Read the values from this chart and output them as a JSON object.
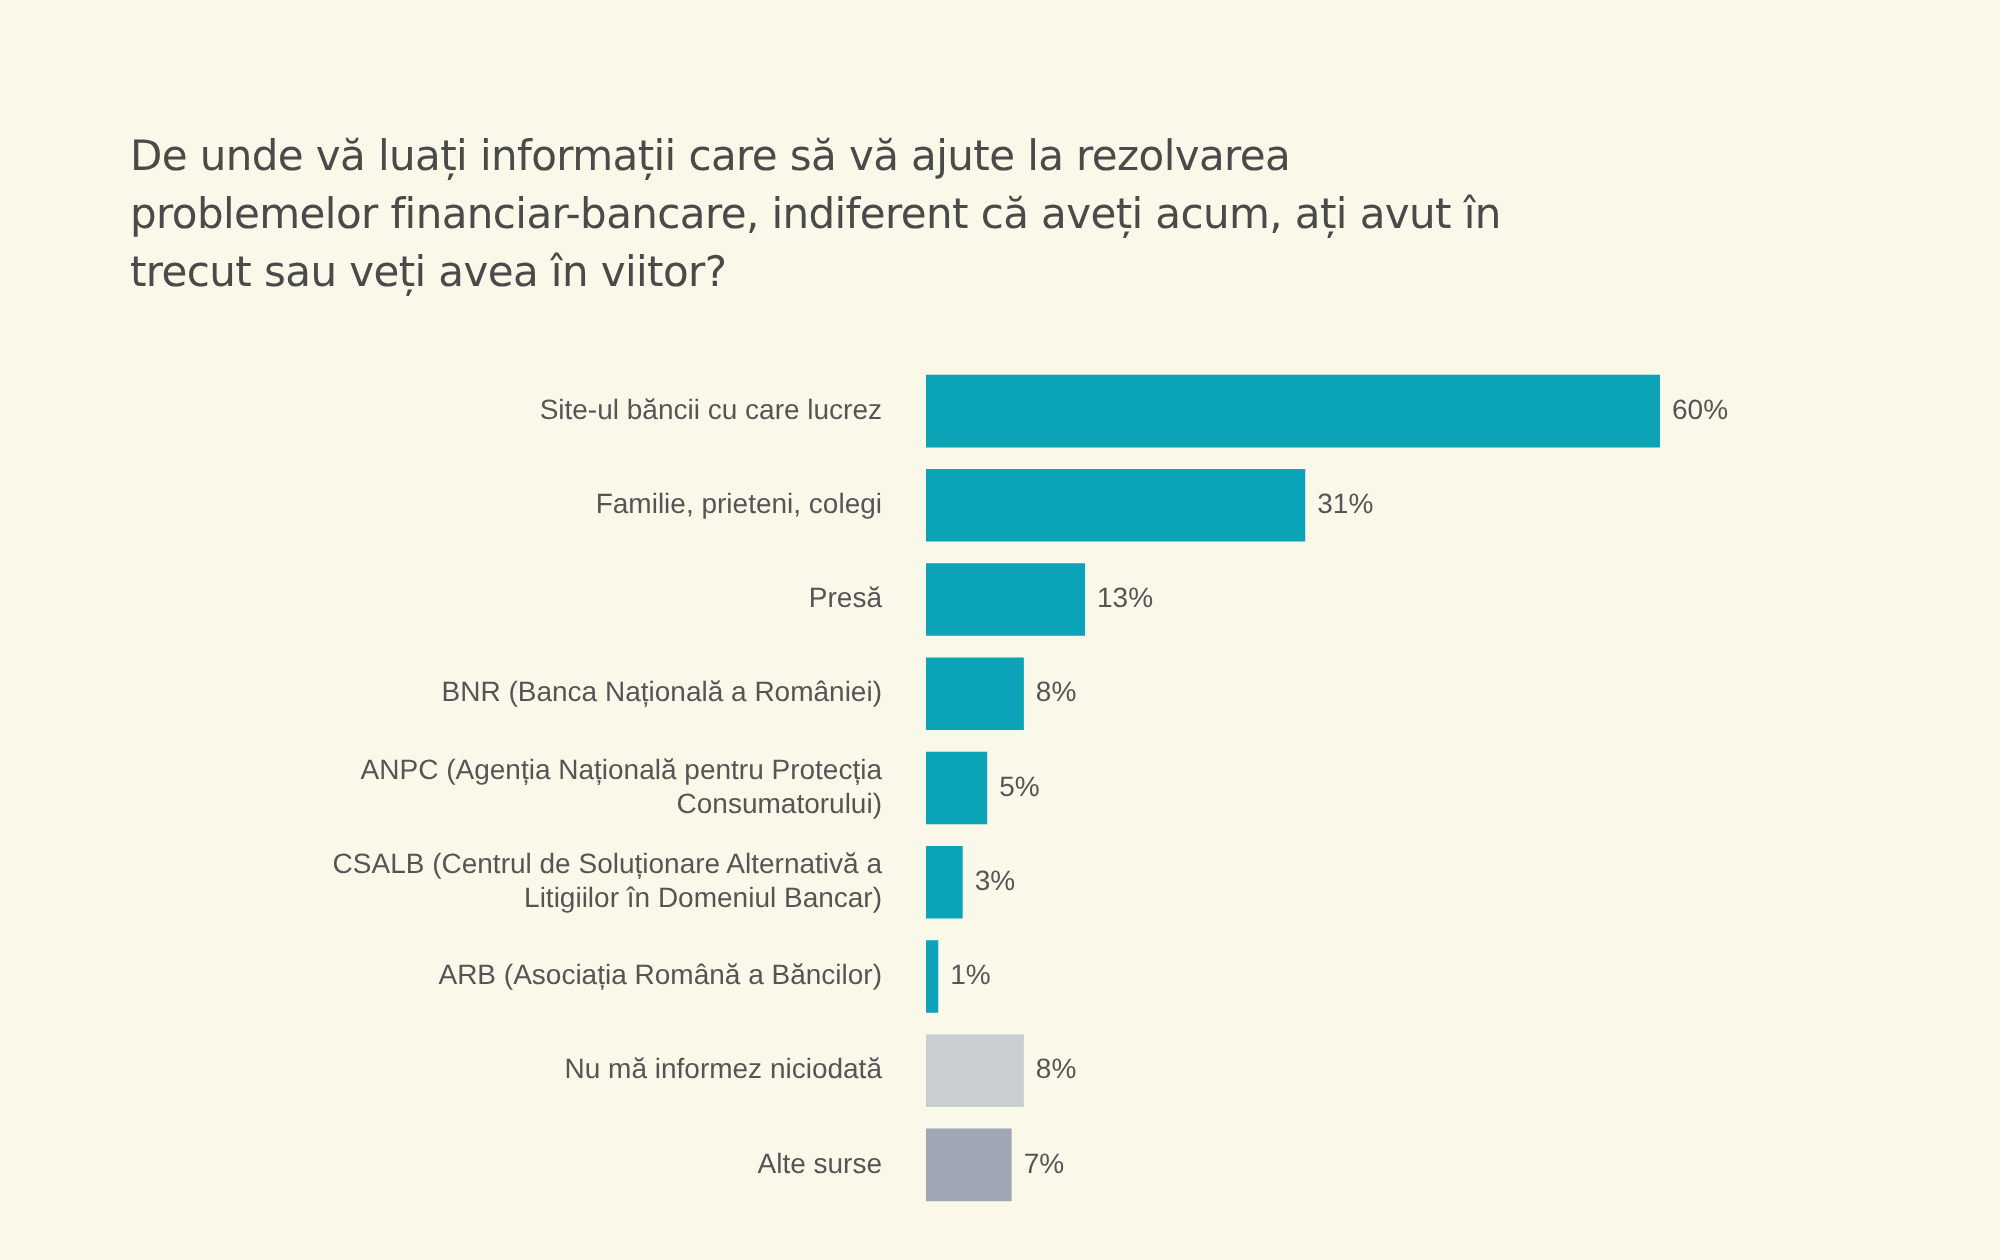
{
  "chart_data": {
    "type": "bar",
    "orientation": "horizontal",
    "title": "De unde vă luați informații care să vă ajute la rezolvarea problemelor financiar-bancare, indiferent că aveți acum, ați avut în trecut sau veți avea în viitor?",
    "categories": [
      "Site-ul băncii cu care lucrez",
      "Familie, prieteni, colegi",
      "Presă",
      "BNR (Banca Națională a României)",
      "ANPC (Agenția Națională pentru Protecția Consumatorului)",
      "CSALB (Centrul de Soluționare Alternativă a Litigiilor în Domeniul Bancar)",
      "ARB (Asociația Română a Băncilor)",
      "Nu mă informez niciodată",
      "Alte surse"
    ],
    "values": [
      60,
      31,
      13,
      8,
      5,
      3,
      1,
      8,
      7
    ],
    "value_labels": [
      "60%",
      "31%",
      "13%",
      "8%",
      "5%",
      "3%",
      "1%",
      "8%",
      "7%"
    ],
    "colors": [
      "#0aa3b8",
      "#0aa3b8",
      "#0aa3b8",
      "#0aa3b8",
      "#0aa3b8",
      "#0aa3b8",
      "#0aa3b8",
      "#c9ced0",
      "#9ea7b3"
    ],
    "grid": false,
    "legend": false
  }
}
